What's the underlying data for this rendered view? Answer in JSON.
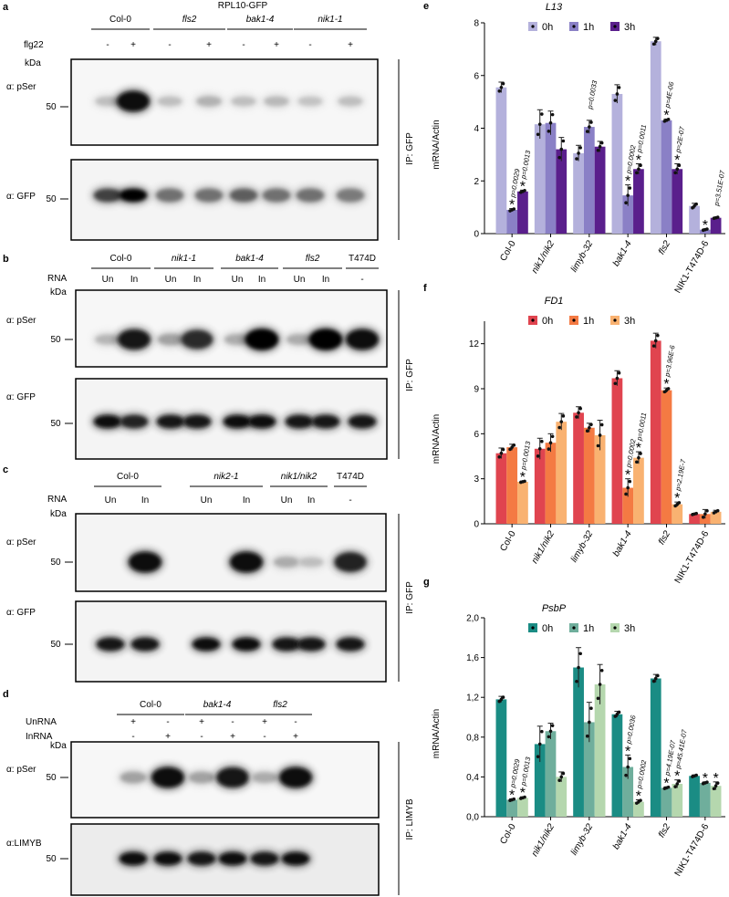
{
  "panels": {
    "a": {
      "letter": "a",
      "header": "RPL10-GFP",
      "groups": [
        "Col-0",
        "fls2",
        "bak1-4",
        "nik1-1"
      ],
      "groups_italic": [
        false,
        true,
        true,
        true
      ],
      "treatment_label": "flg22",
      "treatment": [
        "-",
        "+",
        "-",
        "+",
        "-",
        "+",
        "-",
        "+"
      ],
      "kda": "kDa",
      "blot1_label": "α: pSer",
      "blot2_label": "α: GFP",
      "marker": "50",
      "ip_label": "IP: GFP",
      "intensities_pser": [
        0.05,
        0.95,
        0.05,
        0.12,
        0.05,
        0.08,
        0.03,
        0.05
      ],
      "intensities_gfp": [
        0.7,
        1.0,
        0.45,
        0.45,
        0.55,
        0.45,
        0.45,
        0.4
      ]
    },
    "b": {
      "letter": "b",
      "groups": [
        "Col-0",
        "nik1-1",
        "bak1-4",
        "fls2",
        "T474D"
      ],
      "groups_italic": [
        false,
        true,
        true,
        true,
        false
      ],
      "rna_label": "RNA",
      "rna": [
        "Un",
        "In",
        "Un",
        "In",
        "Un",
        "In",
        "Un",
        "In",
        "-"
      ],
      "kda": "kDa",
      "blot1_label": "α: pSer",
      "blot2_label": "α: GFP",
      "marker": "50",
      "ip_label": "IP: GFP",
      "intensities_pser": [
        0.1,
        0.9,
        0.2,
        0.8,
        0.15,
        1.0,
        0.15,
        1.0,
        0.95
      ],
      "intensities_gfp": [
        0.95,
        0.85,
        0.9,
        0.9,
        0.95,
        0.95,
        0.9,
        0.9,
        0.9
      ]
    },
    "c": {
      "letter": "c",
      "groups": [
        "Col-0",
        "nik2-1",
        "nik1/nik2",
        "T474D"
      ],
      "groups_italic": [
        false,
        true,
        true,
        false
      ],
      "rna_label": "RNA",
      "rna": [
        "Un",
        "In",
        "Un",
        "In",
        "Un",
        "In",
        "-"
      ],
      "kda": "kDa",
      "blot1_label": "α: pSer",
      "blot2_label": "α: GFP",
      "marker": "50",
      "ip_label": "IP: GFP",
      "intensities_pser": [
        0.0,
        0.95,
        0.0,
        0.95,
        0.15,
        0.05,
        0.85
      ],
      "intensities_gfp": [
        0.9,
        0.9,
        0.95,
        0.95,
        0.9,
        0.9,
        0.9
      ]
    },
    "d": {
      "letter": "d",
      "groups": [
        "Col-0",
        "bak1-4",
        "fls2"
      ],
      "groups_italic": [
        false,
        true,
        true
      ],
      "un_label": "UnRNA",
      "in_label": "InRNA",
      "un": [
        "+",
        "-",
        "+",
        "-",
        "+",
        "-"
      ],
      "in": [
        "-",
        "+",
        "-",
        "+",
        "-",
        "+"
      ],
      "kda": "kDa",
      "blot1_label": "α: pSer",
      "blot2_label": "α:LIMYB",
      "marker": "50",
      "ip_label": "IP: LIMYB",
      "intensities_pser": [
        0.2,
        0.95,
        0.2,
        0.9,
        0.15,
        0.95
      ],
      "intensities_gfp": [
        0.95,
        0.95,
        0.9,
        0.95,
        0.9,
        0.95
      ]
    }
  },
  "chart_data": [
    {
      "panel": "e",
      "type": "bar",
      "title": "L13",
      "ylabel": "mRNA/Actin",
      "ylim": [
        0,
        8
      ],
      "yticks": [
        "0",
        "2",
        "4",
        "6",
        "8"
      ],
      "categories": [
        "Col-0",
        "nik1/nik2",
        "limyb-32",
        "bak1-4",
        "fls2",
        "NIK1-T474D-6"
      ],
      "categories_italic": [
        false,
        true,
        true,
        true,
        true,
        false
      ],
      "series": [
        {
          "name": "0h",
          "color": "#b4b1dc",
          "values": [
            5.55,
            4.15,
            3.05,
            5.3,
            7.3,
            1.05
          ],
          "errors": [
            0.2,
            0.55,
            0.3,
            0.35,
            0.15,
            0.1
          ]
        },
        {
          "name": "1h",
          "color": "#8a80c6",
          "values": [
            0.9,
            4.2,
            4.05,
            1.45,
            4.3,
            0.15
          ],
          "errors": [
            0.05,
            0.45,
            0.25,
            0.4,
            0.05,
            0.03
          ]
        },
        {
          "name": "3h",
          "color": "#5a1f8c",
          "values": [
            1.6,
            3.2,
            3.3,
            2.45,
            2.45,
            0.6
          ],
          "errors": [
            0.05,
            0.45,
            0.2,
            0.2,
            0.2,
            0.03
          ]
        }
      ],
      "stars": [
        {
          "cat": 0,
          "series": 1
        },
        {
          "cat": 0,
          "series": 2
        },
        {
          "cat": 3,
          "series": 1
        },
        {
          "cat": 3,
          "series": 2
        },
        {
          "cat": 4,
          "series": 1
        },
        {
          "cat": 4,
          "series": 2
        },
        {
          "cat": 5,
          "series": 1
        }
      ],
      "pvalues": [
        {
          "cat": 0,
          "series": 1,
          "text": "p=0.0029"
        },
        {
          "cat": 0,
          "series": 2,
          "text": "p=0.0013"
        },
        {
          "cat": 2,
          "series": 1,
          "text": "p=0.0033"
        },
        {
          "cat": 3,
          "series": 1,
          "text": "p=0.0002"
        },
        {
          "cat": 3,
          "series": 2,
          "text": "p=0.0011"
        },
        {
          "cat": 4,
          "series": 1,
          "text": "p=4E-06"
        },
        {
          "cat": 4,
          "series": 2,
          "text": "p=2E-07"
        },
        {
          "cat": 5,
          "series": 2,
          "text": "p=3.51E-07"
        }
      ],
      "legend": "top"
    },
    {
      "panel": "f",
      "type": "bar",
      "title": "FD1",
      "ylabel": "mRNA/Actin",
      "ylim": [
        0,
        13.5
      ],
      "yticks": [
        "0",
        "3",
        "6",
        "9",
        "12"
      ],
      "categories": [
        "Col-0",
        "nik1/nik2",
        "limyb-32",
        "bak1-4",
        "fls2",
        "NIK1-T474D-6"
      ],
      "categories_italic": [
        false,
        true,
        true,
        true,
        true,
        false
      ],
      "series": [
        {
          "name": "0h",
          "color": "#e0444f",
          "values": [
            4.7,
            5.0,
            7.4,
            9.7,
            12.2,
            0.65
          ],
          "errors": [
            0.35,
            0.7,
            0.4,
            0.5,
            0.5,
            0.05
          ]
        },
        {
          "name": "1h",
          "color": "#f47a43",
          "values": [
            5.1,
            5.4,
            6.4,
            2.4,
            8.9,
            0.65
          ],
          "errors": [
            0.2,
            0.6,
            0.3,
            0.6,
            0.15,
            0.3
          ]
        },
        {
          "name": "3h",
          "color": "#f9b271",
          "values": [
            2.8,
            6.8,
            5.9,
            4.4,
            1.3,
            0.8
          ],
          "errors": [
            0.05,
            0.55,
            1.0,
            0.4,
            0.15,
            0.1
          ]
        }
      ],
      "stars": [
        {
          "cat": 0,
          "series": 2
        },
        {
          "cat": 3,
          "series": 1
        },
        {
          "cat": 3,
          "series": 2
        },
        {
          "cat": 4,
          "series": 1
        },
        {
          "cat": 4,
          "series": 2
        }
      ],
      "pvalues": [
        {
          "cat": 0,
          "series": 2,
          "text": "p=0.0013"
        },
        {
          "cat": 3,
          "series": 1,
          "text": "p=0.0002"
        },
        {
          "cat": 3,
          "series": 2,
          "text": "p=0.0011"
        },
        {
          "cat": 4,
          "series": 1,
          "text": "p=3.96E-6"
        },
        {
          "cat": 4,
          "series": 2,
          "text": "p=2.19E-7"
        }
      ],
      "legend": "top"
    },
    {
      "panel": "g",
      "type": "bar",
      "title": "PsbP",
      "ylabel": "mRNA/Actin",
      "ylim": [
        0,
        2.0
      ],
      "yticks": [
        "0,0",
        "0,4",
        "0,8",
        "1,2",
        "1,6",
        "2,0"
      ],
      "categories": [
        "Col-0",
        "nik1/nik2",
        "limyb-32",
        "bak1-4",
        "fls2",
        "NIK1-T474D-6"
      ],
      "categories_italic": [
        false,
        true,
        true,
        true,
        true,
        false
      ],
      "series": [
        {
          "name": "0h",
          "color": "#1a8c84",
          "values": [
            1.18,
            0.73,
            1.5,
            1.03,
            1.39,
            0.41
          ],
          "errors": [
            0.03,
            0.18,
            0.2,
            0.03,
            0.04,
            0.01
          ]
        },
        {
          "name": "1h",
          "color": "#6fae9c",
          "values": [
            0.17,
            0.86,
            0.95,
            0.5,
            0.29,
            0.34
          ],
          "errors": [
            0.01,
            0.08,
            0.2,
            0.12,
            0.01,
            0.01
          ]
        },
        {
          "name": "3h",
          "color": "#b5d7ae",
          "values": [
            0.19,
            0.4,
            1.33,
            0.15,
            0.33,
            0.31
          ],
          "errors": [
            0.01,
            0.05,
            0.2,
            0.02,
            0.04,
            0.04
          ]
        }
      ],
      "stars": [
        {
          "cat": 0,
          "series": 1
        },
        {
          "cat": 0,
          "series": 2
        },
        {
          "cat": 3,
          "series": 1
        },
        {
          "cat": 3,
          "series": 2
        },
        {
          "cat": 4,
          "series": 1
        },
        {
          "cat": 4,
          "series": 2
        },
        {
          "cat": 5,
          "series": 1
        },
        {
          "cat": 5,
          "series": 2
        }
      ],
      "pvalues": [
        {
          "cat": 0,
          "series": 1,
          "text": "p=0.0029"
        },
        {
          "cat": 0,
          "series": 2,
          "text": "p=0.0013"
        },
        {
          "cat": 3,
          "series": 1,
          "text": "p=0.0036"
        },
        {
          "cat": 3,
          "series": 2,
          "text": "p=0.0002"
        },
        {
          "cat": 4,
          "series": 1,
          "text": "p=4.19E-07"
        },
        {
          "cat": 4,
          "series": 2,
          "text": "p=45.41E-07"
        }
      ],
      "legend": "top"
    }
  ]
}
